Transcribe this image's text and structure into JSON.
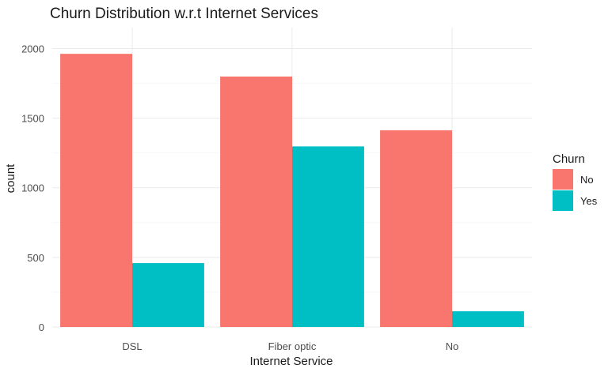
{
  "chart_data": {
    "type": "bar",
    "title": "Churn Distribution w.r.t Internet Services",
    "xlabel": "Internet Service",
    "ylabel": "count",
    "categories": [
      "DSL",
      "Fiber optic",
      "No"
    ],
    "series": [
      {
        "name": "No",
        "color": "#F8766D",
        "values": [
          1962,
          1799,
          1413
        ]
      },
      {
        "name": "Yes",
        "color": "#00BFC4",
        "values": [
          459,
          1297,
          113
        ]
      }
    ],
    "ylim": [
      0,
      2150
    ],
    "yticks": [
      0,
      500,
      1000,
      1500,
      2000
    ],
    "grid": true,
    "legend": {
      "title": "Churn",
      "position": "right",
      "items": [
        "No",
        "Yes"
      ]
    }
  }
}
